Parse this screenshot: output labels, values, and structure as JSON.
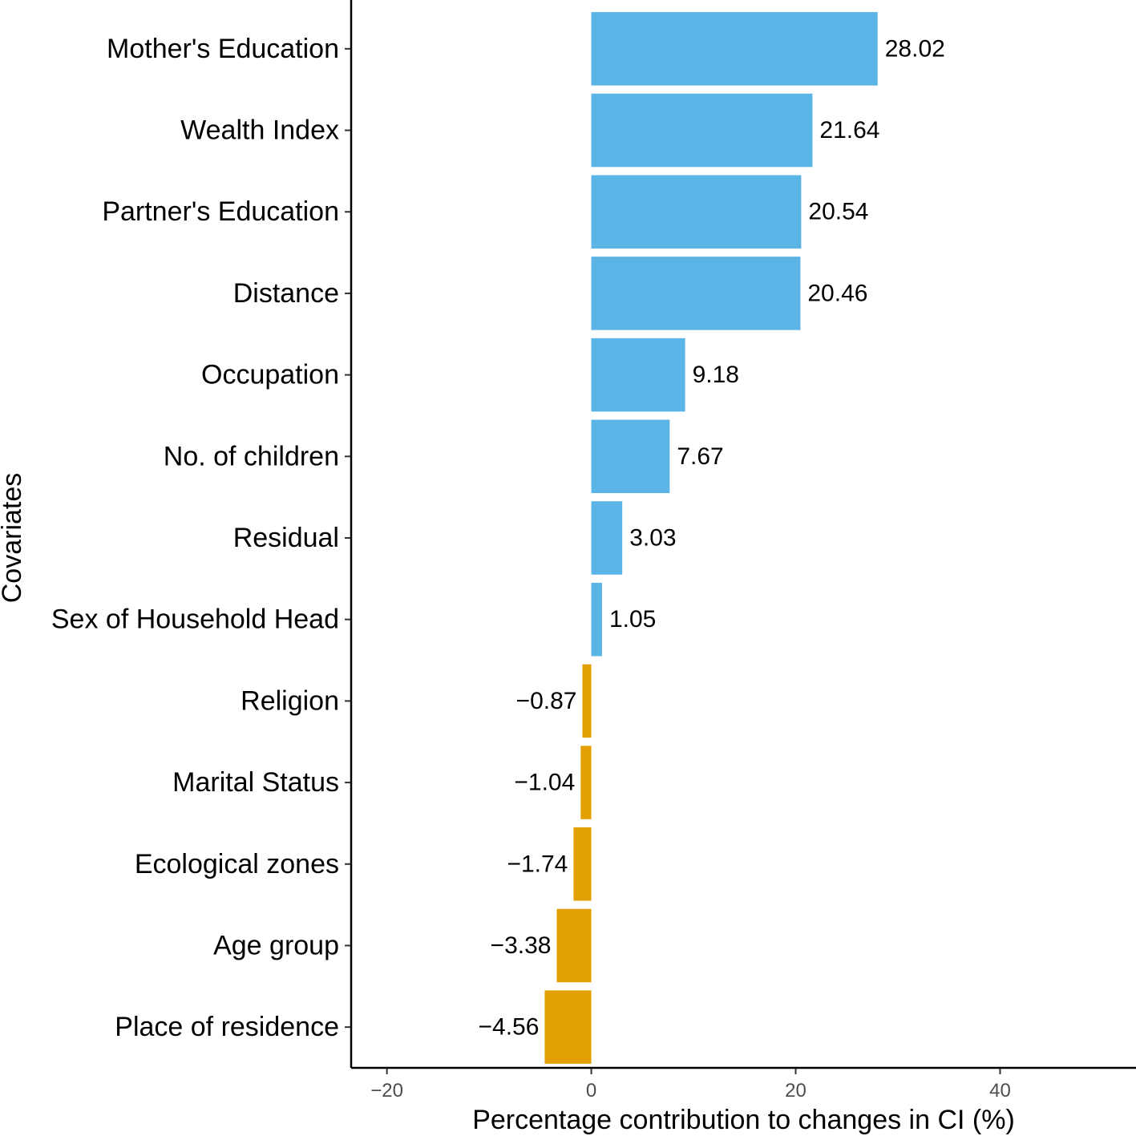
{
  "chart_data": {
    "type": "bar",
    "orientation": "horizontal",
    "categories": [
      "Mother's Education",
      "Wealth Index",
      "Partner's Education",
      "Distance",
      "Occupation",
      "No. of children",
      "Residual",
      "Sex of Household Head",
      "Religion",
      "Marital Status",
      "Ecological zones",
      "Age group",
      "Place of residence"
    ],
    "values": [
      28.02,
      21.64,
      20.54,
      20.46,
      9.18,
      7.67,
      3.03,
      1.05,
      -0.87,
      -1.04,
      -1.74,
      -3.38,
      -4.56
    ],
    "value_labels": [
      "28.02",
      "21.64",
      "20.54",
      "20.46",
      "9.18",
      "7.67",
      "3.03",
      "1.05",
      "−0.87",
      "−1.04",
      "−1.74",
      "−3.38",
      "−4.56"
    ],
    "xlabel": "Percentage contribution to changes in CI (%)",
    "ylabel": "Covariates",
    "xlim": [
      -23.5,
      53.3
    ],
    "x_ticks": [
      -20,
      0,
      20,
      40
    ],
    "x_tick_labels": [
      "−20",
      "0",
      "20",
      "40"
    ],
    "colors": {
      "positive": "#5AB4E5",
      "negative": "#E3A004"
    },
    "grid": false,
    "legend": "none"
  }
}
